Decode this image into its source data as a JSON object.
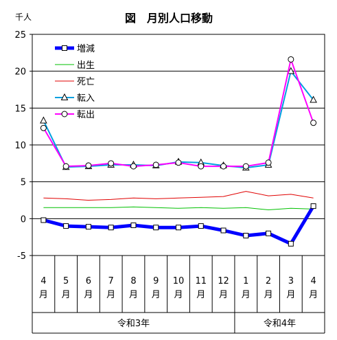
{
  "chart_data": {
    "type": "line",
    "title": "図　月別人口移動",
    "unit_label": "千人",
    "xlabel": "",
    "ylabel": "",
    "ylim": [
      -5,
      25
    ],
    "yticks": [
      -5,
      0,
      5,
      10,
      15,
      20,
      25
    ],
    "grid": true,
    "legend_position": "top-left",
    "categories": [
      "4月",
      "5月",
      "6月",
      "7月",
      "8月",
      "9月",
      "10月",
      "11月",
      "12月",
      "1月",
      "2月",
      "3月",
      "4月"
    ],
    "month_numbers": [
      "4",
      "5",
      "6",
      "7",
      "8",
      "9",
      "10",
      "11",
      "12",
      "1",
      "2",
      "3",
      "4"
    ],
    "month_suffix": "月",
    "year_groups": [
      {
        "label": "令和3年",
        "span": [
          0,
          8
        ]
      },
      {
        "label": "令和4年",
        "span": [
          9,
          12
        ]
      }
    ],
    "series": [
      {
        "name": "増減",
        "color": "#0000ff",
        "marker": "square",
        "values": [
          -0.2,
          -1.0,
          -1.1,
          -1.2,
          -0.9,
          -1.2,
          -1.2,
          -1.0,
          -1.6,
          -2.3,
          -2.0,
          -3.4,
          1.7
        ]
      },
      {
        "name": "出生",
        "color": "#00c000",
        "marker": "none",
        "values": [
          1.5,
          1.5,
          1.5,
          1.5,
          1.6,
          1.5,
          1.4,
          1.5,
          1.4,
          1.5,
          1.2,
          1.4,
          1.3
        ]
      },
      {
        "name": "死亡",
        "color": "#e00000",
        "marker": "none",
        "values": [
          2.8,
          2.7,
          2.5,
          2.6,
          2.8,
          2.7,
          2.8,
          2.9,
          3.0,
          3.7,
          3.1,
          3.3,
          2.8
        ]
      },
      {
        "name": "転入",
        "color": "#00a0e0",
        "marker": "triangle",
        "values": [
          13.3,
          7.0,
          7.1,
          7.3,
          7.3,
          7.2,
          7.7,
          7.6,
          7.2,
          6.9,
          7.3,
          20.0,
          16.1
        ]
      },
      {
        "name": "転出",
        "color": "#ff00ff",
        "marker": "circle",
        "values": [
          12.3,
          7.1,
          7.2,
          7.5,
          7.1,
          7.3,
          7.6,
          7.1,
          7.1,
          7.1,
          7.6,
          21.6,
          13.0
        ]
      }
    ]
  }
}
